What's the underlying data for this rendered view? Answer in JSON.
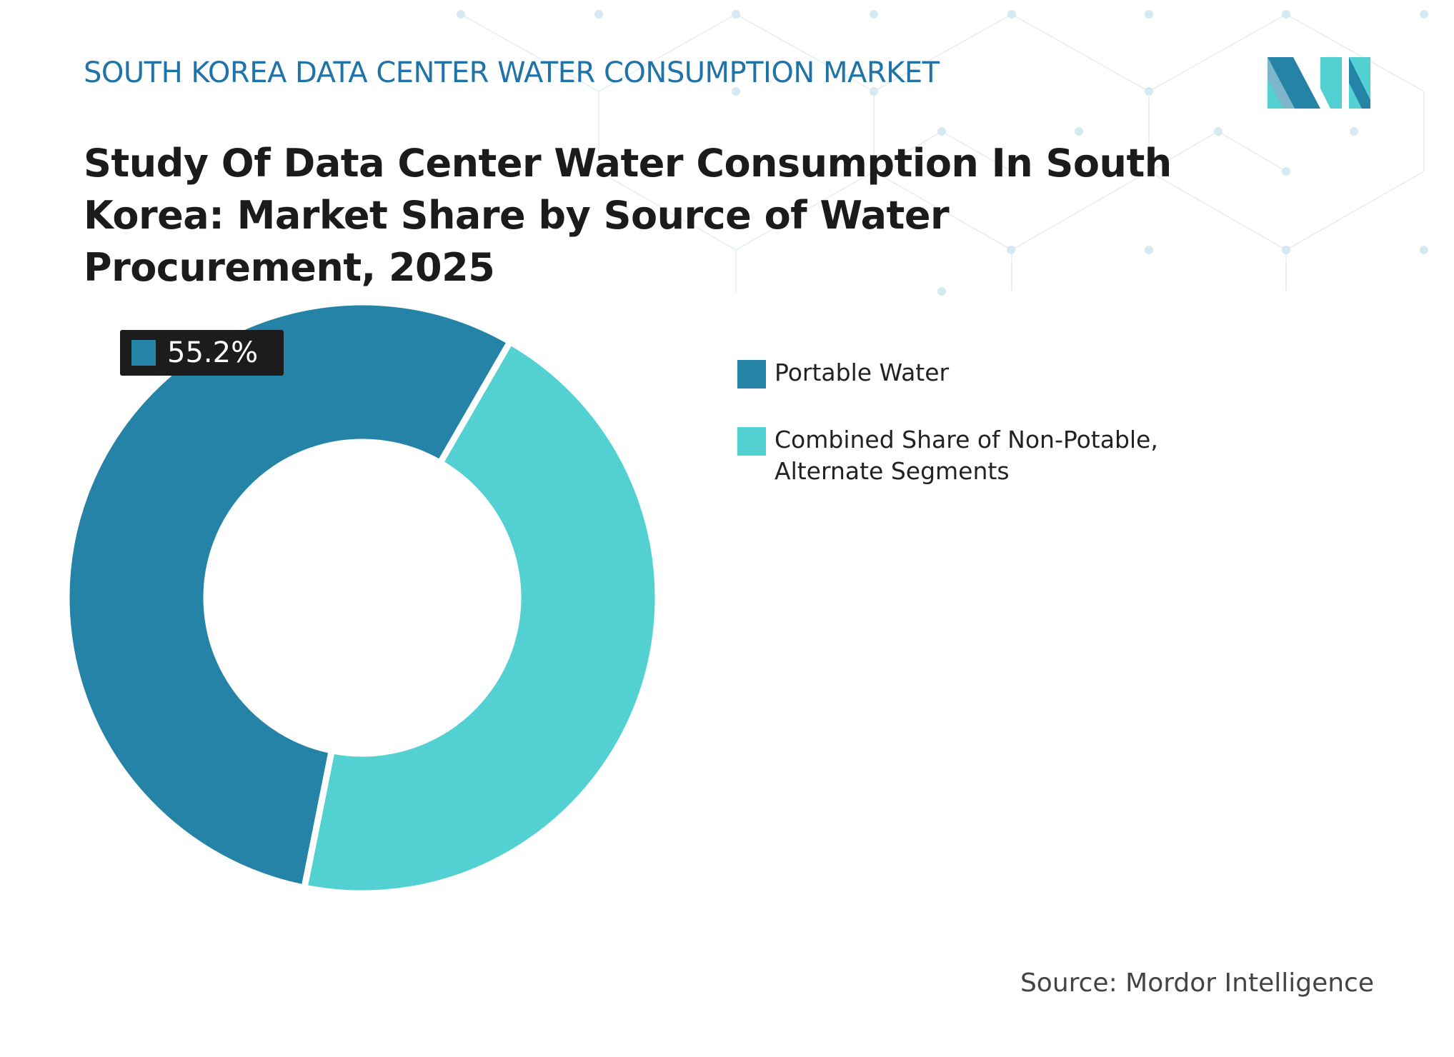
{
  "chart_data": {
    "type": "donut",
    "header": "SOUTH KOREA DATA CENTER WATER CONSUMPTION MARKET",
    "title": "Study Of Data Center Water Consumption In South Korea: Market Share by Source of Water Procurement, 2025",
    "categories": [
      "Portable Water",
      "Combined Share of Non-Potable, Alternate Segments"
    ],
    "values": [
      55.2,
      44.8
    ],
    "value_labels": [
      "55.2%",
      null
    ],
    "colors": [
      "#2683a8",
      "#53d1d2"
    ],
    "source": "Source: Mordor Intelligence"
  }
}
